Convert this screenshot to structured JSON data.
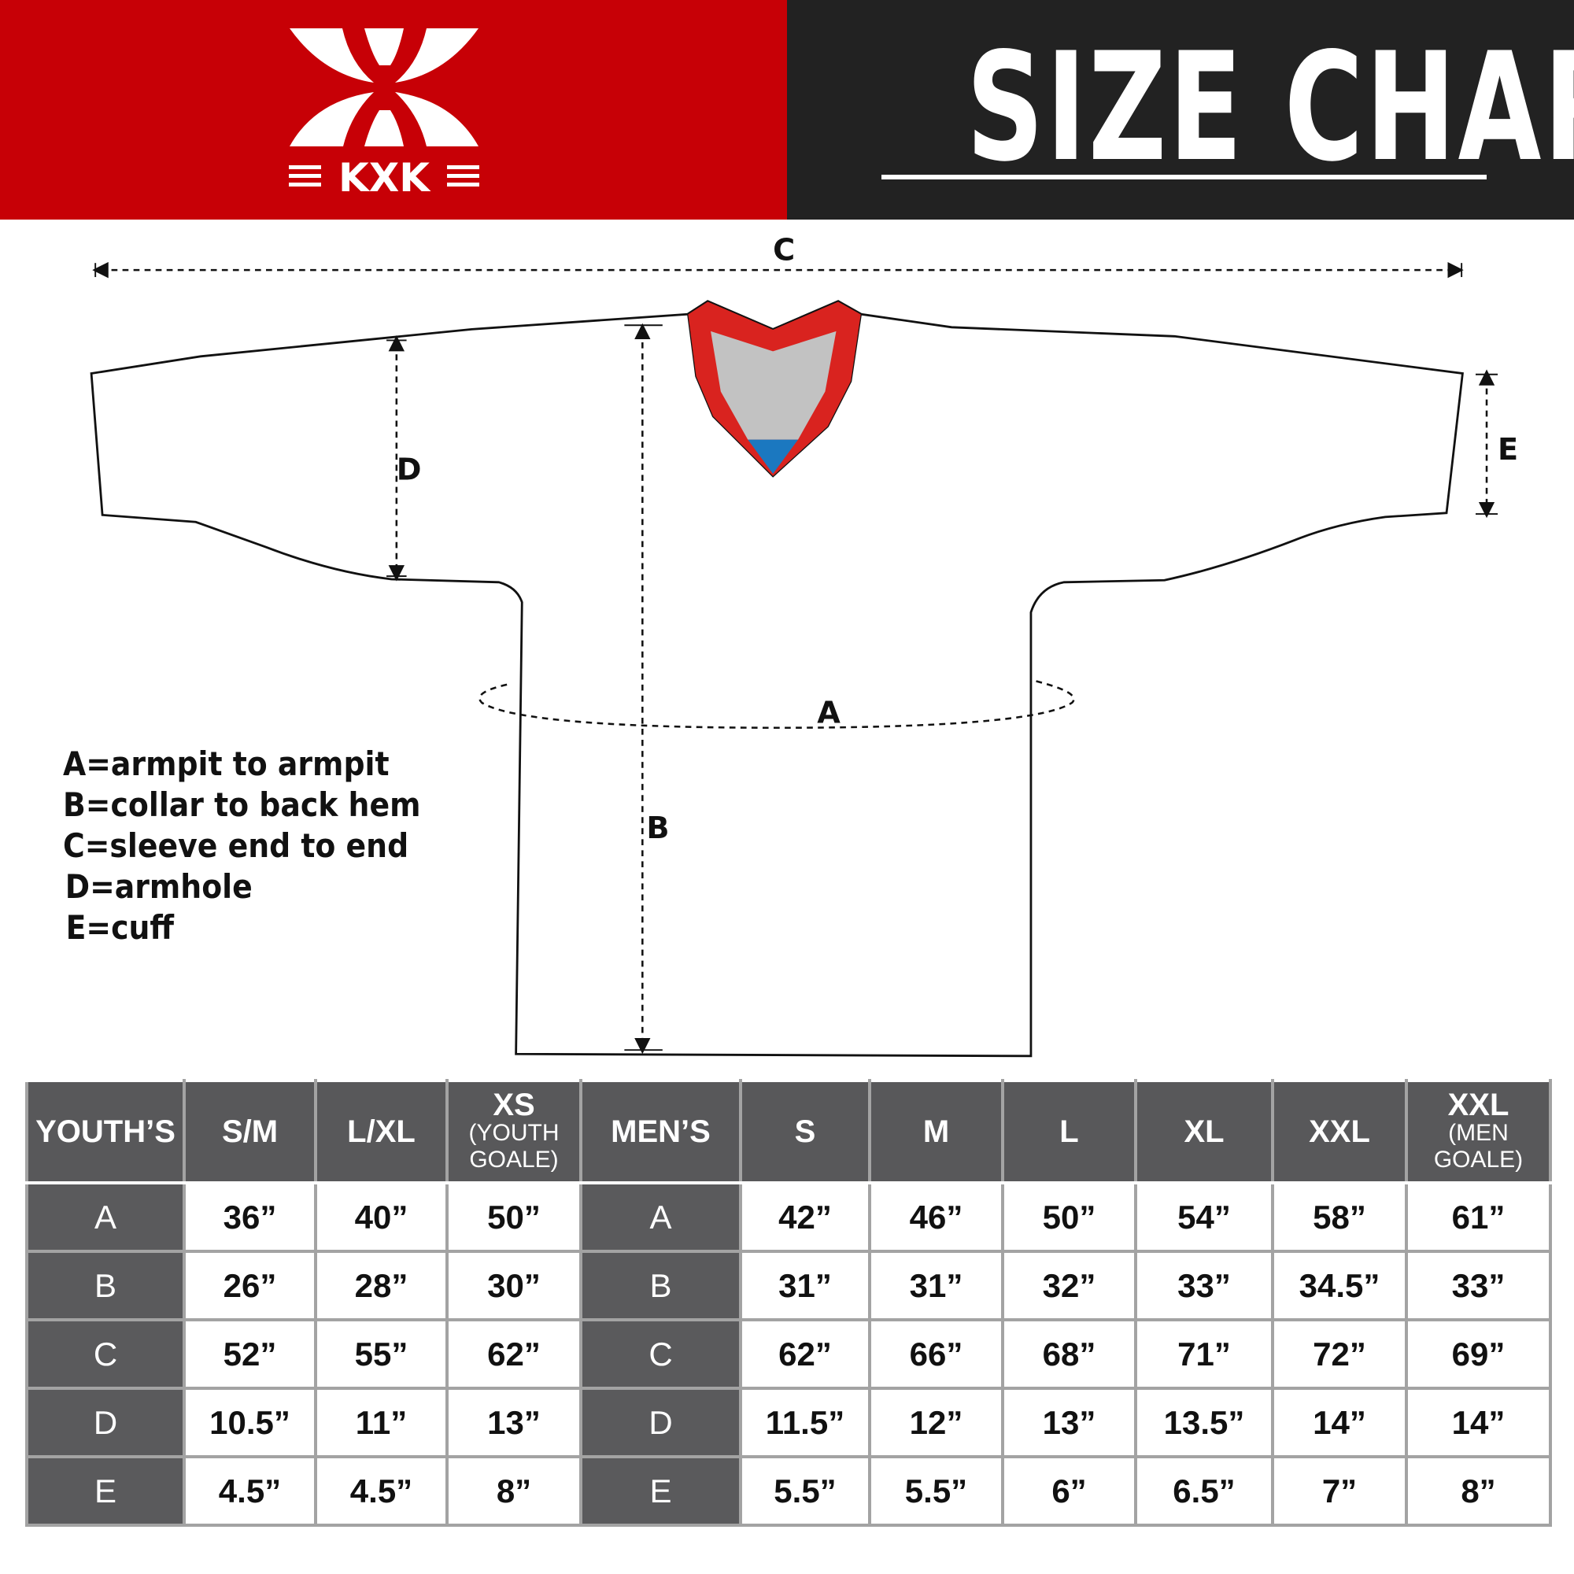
{
  "header": {
    "brand": "KXK",
    "title": "SIZE CHART",
    "colors": {
      "brand_red": "#c70006",
      "banner_dark": "#222222",
      "table_dark": "#58585a"
    }
  },
  "diagram": {
    "labels": {
      "a": "A",
      "b": "B",
      "c": "C",
      "d": "D",
      "e": "E"
    },
    "legend": [
      "A=armpit to armpit",
      "B=collar to back hem",
      "C=sleeve end to end",
      "D=armhole",
      "E=cuff"
    ]
  },
  "table": {
    "headers": [
      {
        "main": "YOUTH’S",
        "sub": ""
      },
      {
        "main": "S/M",
        "sub": ""
      },
      {
        "main": "L/XL",
        "sub": ""
      },
      {
        "main": "XS",
        "sub": "(YOUTH GOALE)"
      },
      {
        "main": "MEN’S",
        "sub": ""
      },
      {
        "main": "S",
        "sub": ""
      },
      {
        "main": "M",
        "sub": ""
      },
      {
        "main": "L",
        "sub": ""
      },
      {
        "main": "XL",
        "sub": ""
      },
      {
        "main": "XXL",
        "sub": ""
      },
      {
        "main": "XXL",
        "sub": "(MEN GOALE)"
      }
    ],
    "rows": [
      [
        "A",
        "36”",
        "40”",
        "50”",
        "A",
        "42”",
        "46”",
        "50”",
        "54”",
        "58”",
        "61”"
      ],
      [
        "B",
        "26”",
        "28”",
        "30”",
        "B",
        "31”",
        "31”",
        "32”",
        "33”",
        "34.5”",
        "33”"
      ],
      [
        "C",
        "52”",
        "55”",
        "62”",
        "C",
        "62”",
        "66”",
        "68”",
        "71”",
        "72”",
        "69”"
      ],
      [
        "D",
        "10.5”",
        "11”",
        "13”",
        "D",
        "11.5”",
        "12”",
        "13”",
        "13.5”",
        "14”",
        "14”"
      ],
      [
        "E",
        "4.5”",
        "4.5”",
        "8”",
        "E",
        "5.5”",
        "5.5”",
        "6”",
        "6.5”",
        "7”",
        "8”"
      ]
    ]
  }
}
